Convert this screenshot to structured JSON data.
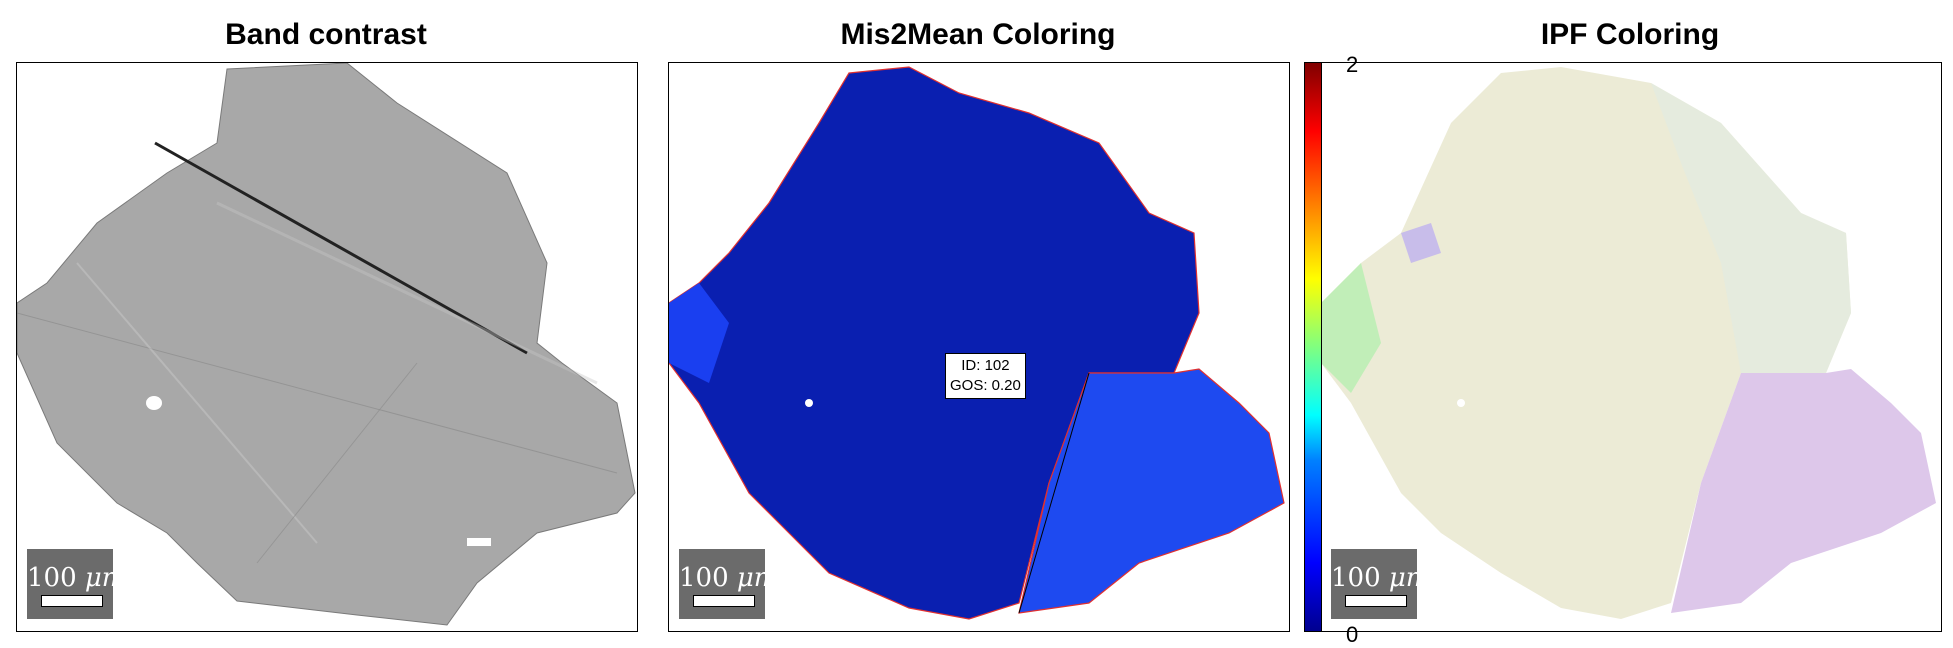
{
  "panels": [
    {
      "title": "Band contrast",
      "scalebar_number": "100",
      "scalebar_unit": "μm"
    },
    {
      "title": "Mis2Mean Coloring",
      "scalebar_number": "100",
      "scalebar_unit": "μm"
    },
    {
      "title": "IPF Coloring",
      "scalebar_number": "100",
      "scalebar_unit": "μm"
    }
  ],
  "datatip": {
    "line1": "ID: 102",
    "line2": "GOS: 0.20"
  },
  "colorbar": {
    "max_label": "2",
    "min_label": "0",
    "colormap": "jet"
  },
  "colors": {
    "band_contrast_gray": "#a8a8a8",
    "mis2mean_dark_blue": "#0a1fb0",
    "mis2mean_bright_blue": "#1e4af0",
    "ipf_cream": "#ecebd6",
    "ipf_pink": "#ddc7ea"
  }
}
